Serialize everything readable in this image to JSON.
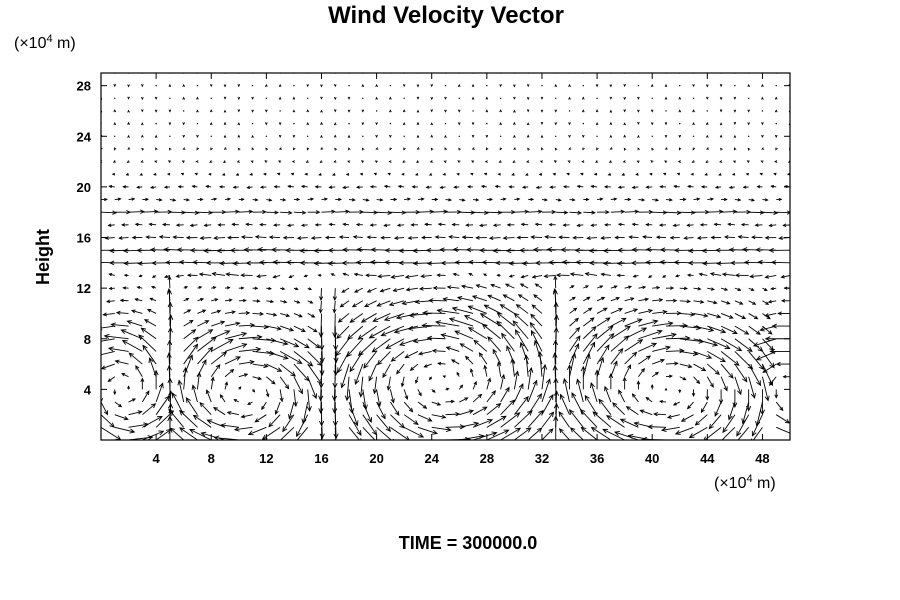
{
  "chart_data": {
    "type": "vector-field",
    "title": "Wind Velocity Vector",
    "xlabel": "",
    "ylabel": "Height",
    "x_unit": {
      "prefix": "(×10",
      "exponent": "4",
      "suffix": " m)"
    },
    "y_unit": {
      "prefix": "(×10",
      "exponent": "4",
      "suffix": " m)"
    },
    "xlim": [
      0,
      50
    ],
    "ylim": [
      0,
      29
    ],
    "x_ticks": [
      4,
      8,
      12,
      16,
      20,
      24,
      28,
      32,
      36,
      40,
      44,
      48
    ],
    "y_ticks": [
      4,
      8,
      12,
      16,
      20,
      24,
      28
    ],
    "grid": {
      "x_start": 0,
      "x_step": 1,
      "x_count": 51,
      "y_start": 0,
      "y_step": 1,
      "y_count": 30
    },
    "vector_reference_length": 0.75,
    "cells": [
      {
        "center": [
          10.5,
          3.7
        ],
        "radius_x": 5.2,
        "radius_y": 3.8,
        "direction": "cw",
        "x_range": [
          5.5,
          15.5
        ]
      },
      {
        "center": [
          24.8,
          4.6
        ],
        "radius_x": 7.2,
        "radius_y": 4.7,
        "direction": "ccw",
        "x_range": [
          17.5,
          32.5
        ]
      },
      {
        "center": [
          41.2,
          4.0
        ],
        "radius_x": 6.8,
        "radius_y": 4.2,
        "direction": "cw",
        "x_range": [
          33.5,
          48.5
        ]
      }
    ],
    "edge_cells": [
      {
        "center": [
          1.6,
          4.0
        ],
        "radius_x": 3.2,
        "radius_y": 3.8,
        "direction": "ccw",
        "x_range": [
          0,
          4.5
        ]
      },
      {
        "center": [
          50.0,
          4.0
        ],
        "radius_x": 3.0,
        "radius_y": 3.8,
        "direction": "ccw",
        "x_range": [
          47.5,
          50
        ]
      }
    ],
    "upper_layers": [
      {
        "y": 14,
        "u": -0.95
      },
      {
        "y": 15,
        "u": -1.0
      },
      {
        "y": 16,
        "u": -0.55
      },
      {
        "y": 17,
        "u": -0.35
      },
      {
        "y": 18,
        "u": 0.7
      },
      {
        "y": 19,
        "u": 0.3
      },
      {
        "y": 20,
        "u": -0.3
      },
      {
        "y": 21,
        "u": -0.12
      },
      {
        "y": 22,
        "u": -0.06
      },
      {
        "y": 23,
        "u": -0.02
      },
      {
        "y": 24,
        "u": 0.0
      },
      {
        "y": 25,
        "u": 0.0
      },
      {
        "y": 26,
        "u": 0.0
      },
      {
        "y": 27,
        "u": 0.0
      },
      {
        "y": 28,
        "u": 0.0
      }
    ],
    "caption": "TIME = 300000.0"
  }
}
